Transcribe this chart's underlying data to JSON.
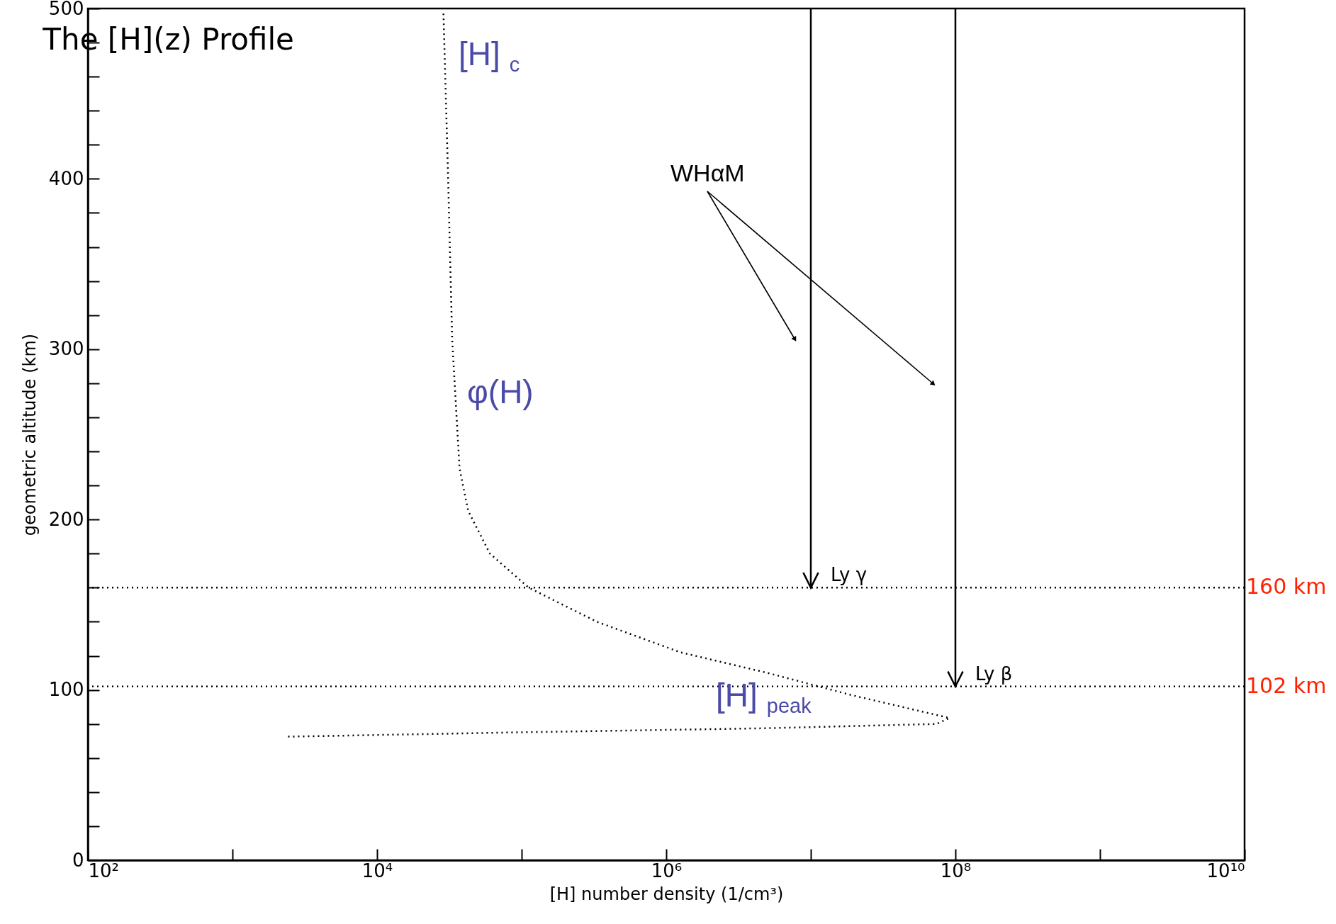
{
  "chart_data": {
    "type": "line",
    "title": "The [H](z) Profile",
    "xlabel": "[H] number density (1/cm³)",
    "ylabel": "geometric altitude (km)",
    "log": "x",
    "xlim": [
      100,
      10000000000
    ],
    "ylim": [
      0,
      500
    ],
    "xticks": [
      {
        "value": 100,
        "label": "10²"
      },
      {
        "value": 1000,
        "label": null
      },
      {
        "value": 10000,
        "label": "10⁴"
      },
      {
        "value": 100000,
        "label": null
      },
      {
        "value": 1000000,
        "label": "10⁶"
      },
      {
        "value": 10000000,
        "label": null
      },
      {
        "value": 100000000,
        "label": "10⁸"
      },
      {
        "value": 1000000000,
        "label": null
      },
      {
        "value": 10000000000,
        "label": "10¹⁰"
      }
    ],
    "yticks": [
      0,
      {
        "value": 20,
        "label": null
      },
      {
        "value": 40,
        "label": null
      },
      {
        "value": 60,
        "label": null
      },
      {
        "value": 80,
        "label": null
      },
      100,
      {
        "value": 120,
        "label": null
      },
      {
        "value": 140,
        "label": null
      },
      {
        "value": 160,
        "label": null
      },
      {
        "value": 180,
        "label": null
      },
      200,
      {
        "value": 220,
        "label": null
      },
      {
        "value": 240,
        "label": null
      },
      {
        "value": 260,
        "label": null
      },
      {
        "value": 280,
        "label": null
      },
      300,
      {
        "value": 320,
        "label": null
      },
      {
        "value": 340,
        "label": null
      },
      {
        "value": 360,
        "label": null
      },
      {
        "value": 380,
        "label": null
      },
      400,
      {
        "value": 420,
        "label": null
      },
      {
        "value": 440,
        "label": null
      },
      {
        "value": 460,
        "label": null
      },
      {
        "value": 480,
        "label": null
      },
      500
    ],
    "series": [
      {
        "color": "#000000",
        "line_style": "dotted",
        "x": [
          28800,
          30900,
          33100,
          37200,
          42700,
          60300,
          112000,
          331000,
          1260000,
          5000000,
          19000000,
          91000000,
          74000000,
          5000000,
          85000,
          2300
        ],
        "values": [
          497,
          405,
          305,
          230,
          205,
          180,
          160,
          140,
          122,
          110,
          97,
          83.5,
          80,
          77.5,
          75,
          72.5
        ]
      }
    ],
    "ref_lines": [
      {
        "axis": "y",
        "value": 160,
        "label": "160 km",
        "line_style": "dotted"
      },
      {
        "axis": "y",
        "value": 102,
        "label": "102 km",
        "line_style": "dotted"
      }
    ],
    "annotations": [
      {
        "text": "Ly γ",
        "x": 10000000,
        "y": 160
      },
      {
        "text": "Ly β",
        "x": 100000000,
        "y": 102
      },
      "WHαM",
      "[H]$_{c}$",
      "φ(H)",
      "[H]$_{peak}$"
    ],
    "grid": false
  }
}
